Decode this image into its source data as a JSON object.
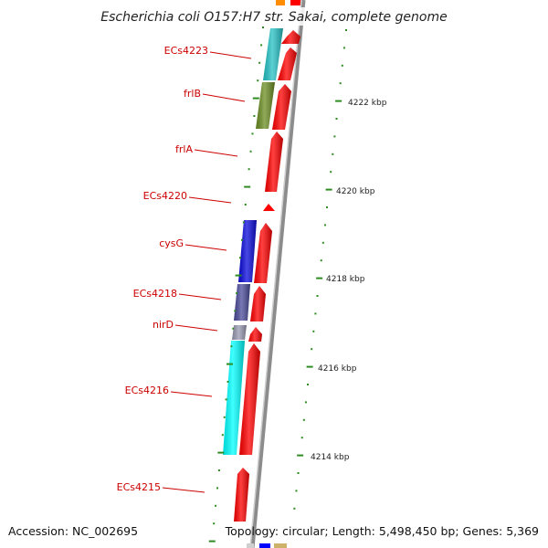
{
  "map": {
    "title": "Escherichia coli O157:H7 str. Sakai, complete genome",
    "accession_text": "Accession: NC_002695",
    "summary_text": "Topology: circular; Length: 5,498,450 bp; Genes: 5,369"
  },
  "genes": [
    {
      "name": "ECs4223",
      "color": "#25c2c6"
    },
    {
      "name": "frlB",
      "color": "#6b8e23"
    },
    {
      "name": "frlA",
      "color": "#ff0000"
    },
    {
      "name": "ECs4220",
      "color": "#ff0000"
    },
    {
      "name": "cysG",
      "color": "#0a0adc"
    },
    {
      "name": "ECs4218",
      "color": "#4b4b9a"
    },
    {
      "name": "nirD",
      "color": "#9a9ab4"
    },
    {
      "name": "ECs4216",
      "color": "#00ffff"
    },
    {
      "name": "ECs4215",
      "color": "#ff0000"
    }
  ],
  "scale": {
    "labels": [
      "4222 kbp",
      "4220 kbp",
      "4218 kbp",
      "4216 kbp",
      "4214 kbp"
    ]
  },
  "colors": {
    "forward_strand": "#ff0000",
    "backbone": "#8c8c8c",
    "tick": "#2e8b22",
    "label_line": "#cc0000"
  }
}
